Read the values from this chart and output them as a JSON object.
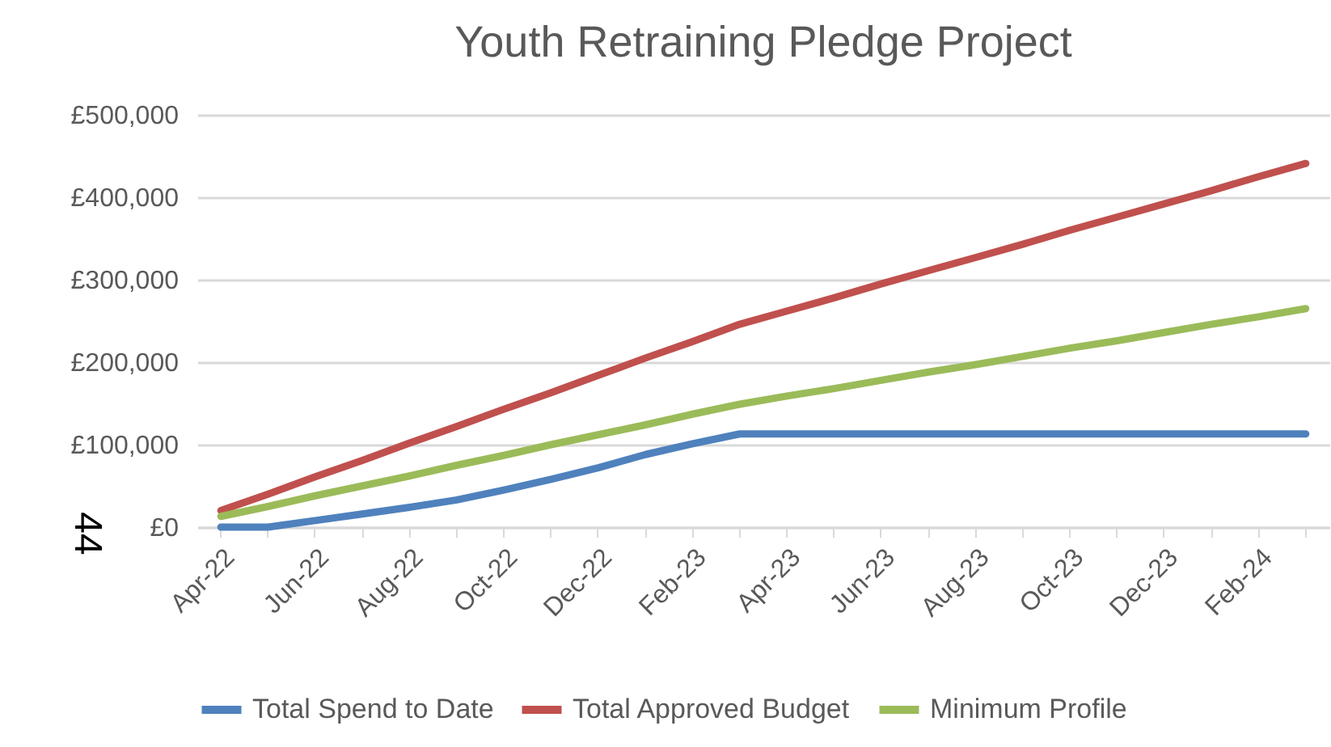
{
  "chart_data": {
    "type": "line",
    "title": "Youth Retraining Pledge Project",
    "categories": [
      "Apr-22",
      null,
      "Jun-22",
      null,
      "Aug-22",
      null,
      "Oct-22",
      null,
      "Dec-22",
      null,
      "Feb-23",
      null,
      "Apr-23",
      null,
      "Jun-23",
      null,
      "Aug-23",
      null,
      "Oct-23",
      null,
      "Dec-23",
      null,
      "Feb-24",
      null
    ],
    "series": [
      {
        "name": "Total Spend to Date",
        "color": "#4f81bd",
        "values": [
          0,
          0,
          8000,
          16000,
          24000,
          33000,
          45000,
          58000,
          72000,
          88000,
          101000,
          113000,
          113000,
          113000,
          113000,
          113000,
          113000,
          113000,
          113000,
          113000,
          113000,
          113000,
          113000,
          113000
        ]
      },
      {
        "name": "Total Approved Budget",
        "color": "#c0504d",
        "values": [
          20000,
          40000,
          61000,
          81000,
          102000,
          122000,
          143000,
          163000,
          184000,
          205000,
          225000,
          246000,
          262000,
          278000,
          295000,
          311000,
          327000,
          343000,
          360000,
          376000,
          392000,
          408000,
          425000,
          441000
        ]
      },
      {
        "name": "Minimum Profile",
        "color": "#9bbb59",
        "values": [
          13000,
          25000,
          38000,
          50000,
          62000,
          75000,
          87000,
          100000,
          112000,
          124000,
          137000,
          149000,
          159000,
          168000,
          178000,
          188000,
          197000,
          207000,
          217000,
          226000,
          236000,
          246000,
          255000,
          265000
        ]
      }
    ],
    "ylim": [
      0,
      500000
    ],
    "yticks": [
      {
        "value": 0,
        "label": "£0"
      },
      {
        "value": 100000,
        "label": "£100,000"
      },
      {
        "value": 200000,
        "label": "£200,000"
      },
      {
        "value": 300000,
        "label": "£300,000"
      },
      {
        "value": 400000,
        "label": "£400,000"
      },
      {
        "value": 500000,
        "label": "£500,000"
      }
    ],
    "grid": "y",
    "legend": "bottom",
    "marker": "none",
    "line_style": "solid",
    "annotations": [
      "44"
    ]
  }
}
